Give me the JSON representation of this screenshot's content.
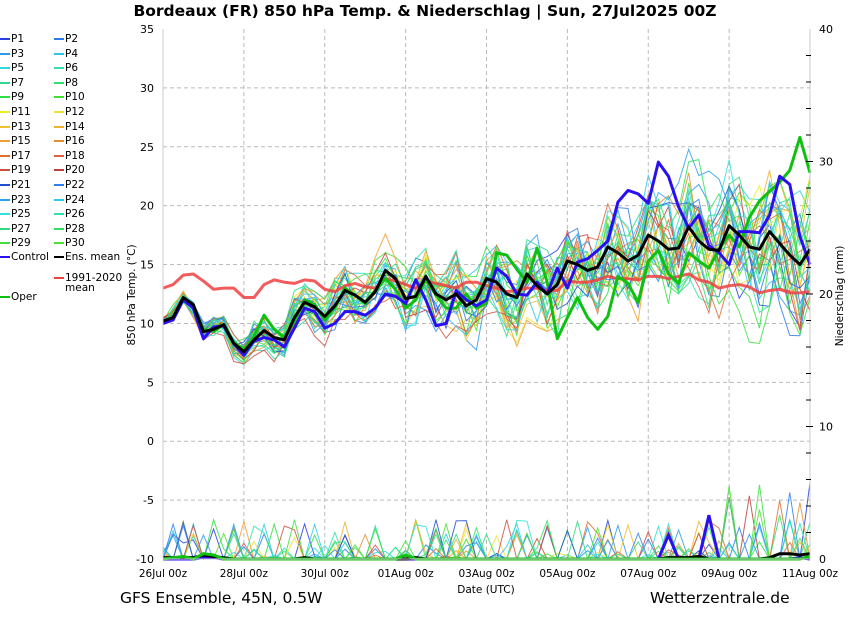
{
  "title": "Bordeaux  (FR)  850 hPa Temp. & Niederschlag | Sun, 27Jul2025 00Z",
  "footer": {
    "left": "GFS Ensemble, 45N, 0.5W",
    "right": "Wetterzentrale.de"
  },
  "legend": [
    {
      "label": "P1",
      "color": "#2b3fe0"
    },
    {
      "label": "P2",
      "color": "#2e7bf0"
    },
    {
      "label": "P3",
      "color": "#2f9ae8"
    },
    {
      "label": "P4",
      "color": "#33c4e8"
    },
    {
      "label": "P5",
      "color": "#30d8e0"
    },
    {
      "label": "P6",
      "color": "#30e0b0"
    },
    {
      "label": "P7",
      "color": "#30d890"
    },
    {
      "label": "P8",
      "color": "#30e070"
    },
    {
      "label": "P9",
      "color": "#30e040"
    },
    {
      "label": "P10",
      "color": "#40e030"
    },
    {
      "label": "P11",
      "color": "#f0f020"
    },
    {
      "label": "P12",
      "color": "#f0e030"
    },
    {
      "label": "P13",
      "color": "#f0c030"
    },
    {
      "label": "P14",
      "color": "#f0b030"
    },
    {
      "label": "P15",
      "color": "#f0a030"
    },
    {
      "label": "P16",
      "color": "#e09030"
    },
    {
      "label": "P17",
      "color": "#e07030"
    },
    {
      "label": "P18",
      "color": "#e06040"
    },
    {
      "label": "P19",
      "color": "#d05040"
    },
    {
      "label": "P20",
      "color": "#c04040"
    },
    {
      "label": "P21",
      "color": "#2050d0"
    },
    {
      "label": "P22",
      "color": "#3080f0"
    },
    {
      "label": "P23",
      "color": "#30a0f0"
    },
    {
      "label": "P24",
      "color": "#30c8f0"
    },
    {
      "label": "P25",
      "color": "#30e0e0"
    },
    {
      "label": "P26",
      "color": "#30e0b0"
    },
    {
      "label": "P27",
      "color": "#30d880"
    },
    {
      "label": "P28",
      "color": "#30e060"
    },
    {
      "label": "P29",
      "color": "#40e040"
    },
    {
      "label": "P30",
      "color": "#50e030"
    },
    {
      "label": "Control",
      "color": "#2a10f0"
    },
    {
      "label": "Ens. mean",
      "color": "#000000"
    },
    {
      "label": "Oper",
      "color": "#10c010"
    },
    {
      "label": "1991-2020 mean",
      "label_line1": "1991-2020",
      "label_line2": "mean",
      "color": "#f04040"
    }
  ],
  "chart_data": {
    "type": "line",
    "title": "Bordeaux  (FR)  850 hPa Temp. & Niederschlag | Sun, 27Jul2025 00Z",
    "xlabel": "Date (UTC)",
    "ylabel": "850 hPa Temp. (°C)",
    "y2label": "Niederschlag (mm)",
    "ylim": [
      -10,
      35
    ],
    "y2lim": [
      0,
      40
    ],
    "yticks": [
      "35",
      "30",
      "25",
      "20",
      "15",
      "10",
      "5",
      "0",
      "-5",
      "-10"
    ],
    "y2ticks": [
      "40",
      "30",
      "20",
      "10",
      "0"
    ],
    "xticks": [
      "26Jul 00z",
      "28Jul 00z",
      "30Jul 00z",
      "01Aug 00z",
      "03Aug 00z",
      "05Aug 00z",
      "07Aug 00z",
      "09Aug 00z",
      "11Aug 00z"
    ],
    "x_step_hours": 6,
    "x_start": "26Jul 00z",
    "grid": true,
    "legend_position": "left",
    "series": [
      {
        "name": "Control",
        "color": "#2a10f0",
        "width": 3,
        "values": [
          10.0,
          10.3,
          12.0,
          11.3,
          8.7,
          9.7,
          9.8,
          8.3,
          7.3,
          8.5,
          8.8,
          8.6,
          8.0,
          9.6,
          11.3,
          11.0,
          9.6,
          10.0,
          11.0,
          11.0,
          10.7,
          11.3,
          12.5,
          12.3,
          11.7,
          13.7,
          12.0,
          9.8,
          10.0,
          12.8,
          12.0,
          11.5,
          12.0,
          14.7,
          14.0,
          12.5,
          12.4,
          13.5,
          12.5,
          14.7,
          13.0,
          15.2,
          15.5,
          16.2,
          17.0,
          20.3,
          21.3,
          21.0,
          20.2,
          23.7,
          22.5,
          19.9,
          18.1,
          19.2,
          16.6,
          16.0,
          15.0,
          17.8,
          17.8,
          17.7,
          19.2,
          22.5,
          21.8,
          17.4,
          15.0
        ]
      },
      {
        "name": "Ens. mean",
        "color": "#000000",
        "width": 3,
        "values": [
          10.2,
          10.5,
          12.2,
          11.6,
          9.3,
          9.5,
          9.9,
          8.3,
          7.6,
          8.6,
          9.4,
          8.8,
          8.6,
          10.5,
          11.8,
          11.4,
          10.6,
          11.5,
          12.8,
          12.4,
          11.8,
          12.7,
          14.5,
          13.8,
          12.1,
          12.3,
          14.0,
          12.5,
          12.0,
          12.5,
          11.5,
          12.0,
          13.8,
          13.5,
          12.5,
          12.2,
          14.2,
          13.2,
          12.5,
          13.3,
          15.3,
          15.0,
          14.5,
          14.8,
          16.5,
          16.0,
          15.3,
          15.8,
          17.5,
          17.0,
          16.3,
          16.4,
          18.2,
          17.0,
          16.3,
          16.2,
          18.3,
          17.5,
          16.5,
          16.3,
          17.8,
          16.8,
          15.8,
          15.0,
          16.3
        ]
      },
      {
        "name": "Oper",
        "color": "#10c010",
        "width": 3,
        "values": [
          10.2,
          10.4,
          12.0,
          11.4,
          9.5,
          9.3,
          9.9,
          8.4,
          7.8,
          8.9,
          10.7,
          9.5,
          8.8,
          10.2,
          12.0,
          11.6,
          10.3,
          11.4,
          13.0,
          12.4,
          11.7,
          12.8,
          13.8,
          12.9,
          11.3,
          12.0,
          13.7,
          12.4,
          11.3,
          11.3,
          12.5,
          11.3,
          11.7,
          16.0,
          15.8,
          14.6,
          13.5,
          16.4,
          13.5,
          8.7,
          10.5,
          12.2,
          10.5,
          9.5,
          10.6,
          14.0,
          13.4,
          11.8,
          15.3,
          16.2,
          14.2,
          13.4,
          16.0,
          15.3,
          14.7,
          16.3,
          17.5,
          16.5,
          19.0,
          20.4,
          21.2,
          22.0,
          23.0,
          25.8,
          22.8
        ]
      },
      {
        "name": "1991-2020 mean",
        "color": "#f04040",
        "width": 3,
        "values": [
          13.0,
          13.3,
          14.1,
          14.2,
          13.6,
          12.9,
          13.0,
          13.0,
          12.2,
          12.2,
          13.3,
          13.7,
          13.5,
          13.4,
          13.7,
          13.6,
          12.9,
          12.7,
          13.2,
          13.4,
          13.1,
          13.0,
          13.8,
          13.6,
          13.3,
          13.0,
          13.6,
          13.4,
          13.2,
          13.0,
          13.5,
          13.5,
          13.2,
          13.0,
          12.7,
          12.8,
          13.0,
          13.0,
          12.8,
          12.8,
          13.6,
          13.5,
          13.5,
          13.7,
          14.0,
          13.8,
          13.8,
          13.7,
          14.0,
          14.0,
          13.8,
          14.0,
          14.2,
          13.7,
          13.5,
          13.0,
          13.2,
          13.3,
          13.1,
          12.6,
          12.8,
          12.9,
          12.6,
          12.6,
          12.7
        ]
      }
    ],
    "precip_series": [
      {
        "name": "Control",
        "color": "#2a10f0",
        "width": 3,
        "values": [
          0,
          0,
          0,
          0,
          0.1,
          0.1,
          0,
          0,
          0,
          0,
          0,
          0,
          0,
          0,
          0,
          0,
          0,
          0,
          0,
          0,
          0,
          0,
          0,
          0,
          0,
          0,
          0,
          0,
          0,
          0,
          0,
          0,
          0,
          0,
          0,
          0,
          0,
          0,
          0,
          0,
          0,
          0,
          0,
          0,
          0,
          0,
          0,
          0,
          0,
          0,
          1.8,
          0,
          0,
          0,
          3.3,
          0,
          0,
          0,
          0,
          0,
          0,
          0,
          0,
          0.1,
          0
        ]
      },
      {
        "name": "Ens. mean",
        "color": "#000000",
        "width": 3,
        "values": [
          0.1,
          0.1,
          0.1,
          0.1,
          0.3,
          0.2,
          0.1,
          0,
          0,
          0,
          0,
          0,
          0,
          0,
          0.1,
          0,
          0,
          0,
          0,
          0,
          0,
          0,
          0,
          0,
          0,
          0.1,
          0,
          0,
          0,
          0,
          0,
          0,
          0,
          0,
          0,
          0,
          0,
          0,
          0,
          0,
          0,
          0,
          0,
          0,
          0,
          0,
          0,
          0,
          0,
          0,
          0.1,
          0.1,
          0.1,
          0.2,
          0,
          0,
          0,
          0,
          0,
          0,
          0.1,
          0.4,
          0.4,
          0.3,
          0.4
        ]
      },
      {
        "name": "Oper",
        "color": "#10c010",
        "width": 3,
        "values": [
          0,
          0.1,
          0.2,
          0,
          0.4,
          0.3,
          0,
          0,
          0,
          0,
          0,
          0,
          0,
          0,
          0,
          0,
          0,
          0,
          0,
          0,
          0,
          0,
          0,
          0,
          0.3,
          0,
          0,
          0,
          0,
          0,
          0,
          0,
          0,
          0,
          0,
          0,
          0,
          0,
          0,
          0,
          0,
          0,
          0,
          0,
          0,
          0,
          0,
          0,
          0,
          0,
          0,
          0,
          0,
          0,
          0,
          0,
          0,
          0,
          0,
          0,
          0,
          0,
          0,
          0,
          0.2
        ]
      }
    ]
  }
}
